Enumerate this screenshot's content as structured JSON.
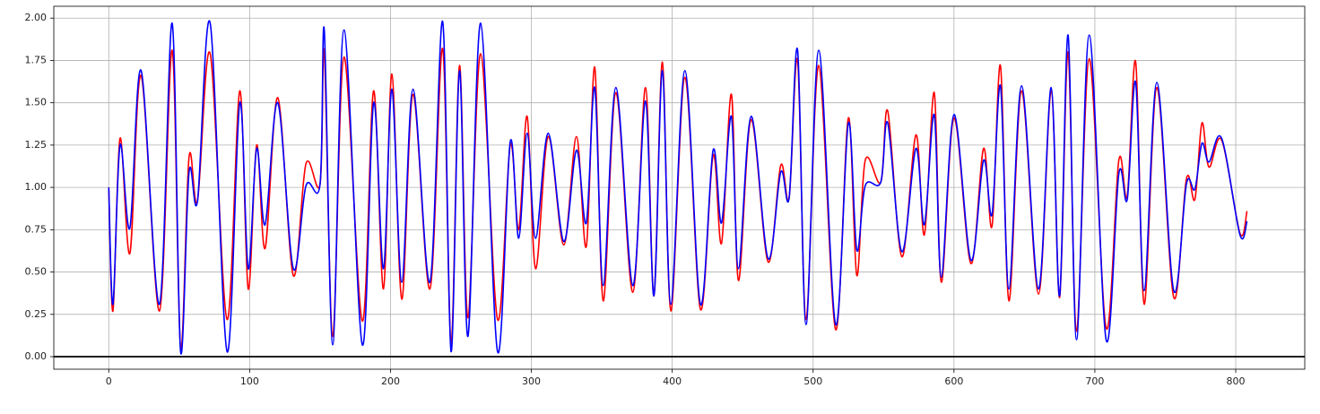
{
  "chart_data": {
    "type": "line",
    "x": [
      0,
      3,
      8,
      15,
      23,
      36,
      45,
      51,
      57,
      63,
      72,
      84,
      93,
      99,
      105,
      111,
      120,
      131,
      140,
      150,
      153,
      159,
      167,
      180,
      188,
      195,
      201,
      208,
      216,
      228,
      237,
      243,
      249,
      255,
      264,
      276,
      285,
      291,
      297,
      303,
      312,
      323,
      332,
      339,
      345,
      351,
      360,
      372,
      381,
      387,
      393,
      399,
      409,
      420,
      429,
      435,
      442,
      447,
      456,
      468,
      477,
      483,
      489,
      495,
      504,
      516,
      525,
      531,
      537,
      548,
      553,
      563,
      573,
      579,
      586,
      591,
      600,
      612,
      621,
      627,
      633,
      639,
      648,
      660,
      669,
      675,
      681,
      687,
      696,
      708,
      717,
      723,
      729,
      735,
      744,
      756,
      765,
      771,
      776,
      781,
      790,
      803,
      808
    ],
    "series": [
      {
        "color": "#ff0000",
        "values": [
          1.0,
          0.27,
          1.29,
          0.61,
          1.66,
          0.27,
          1.81,
          0.05,
          1.18,
          0.92,
          1.79,
          0.22,
          1.57,
          0.4,
          1.25,
          0.64,
          1.53,
          0.48,
          1.14,
          1.02,
          1.8,
          0.12,
          1.77,
          0.21,
          1.57,
          0.4,
          1.67,
          0.34,
          1.55,
          0.4,
          1.82,
          0.08,
          1.72,
          0.23,
          1.79,
          0.22,
          1.25,
          0.75,
          1.42,
          0.52,
          1.3,
          0.66,
          1.3,
          0.65,
          1.71,
          0.33,
          1.56,
          0.38,
          1.59,
          0.36,
          1.74,
          0.27,
          1.65,
          0.28,
          1.19,
          0.67,
          1.55,
          0.45,
          1.4,
          0.56,
          1.13,
          0.94,
          1.75,
          0.22,
          1.72,
          0.16,
          1.41,
          0.48,
          1.16,
          1.03,
          1.45,
          0.59,
          1.31,
          0.72,
          1.56,
          0.44,
          1.41,
          0.55,
          1.23,
          0.77,
          1.72,
          0.33,
          1.57,
          0.37,
          1.57,
          0.35,
          1.8,
          0.15,
          1.76,
          0.17,
          1.16,
          0.95,
          1.74,
          0.31,
          1.59,
          0.35,
          1.05,
          0.93,
          1.38,
          1.12,
          1.28,
          0.73,
          0.86
        ]
      },
      {
        "color": "#0000ff",
        "values": [
          1.0,
          0.31,
          1.25,
          0.76,
          1.69,
          0.31,
          1.97,
          0.03,
          1.09,
          0.92,
          1.97,
          0.03,
          1.5,
          0.52,
          1.23,
          0.78,
          1.5,
          0.52,
          1.01,
          1.02,
          1.93,
          0.07,
          1.93,
          0.07,
          1.5,
          0.52,
          1.58,
          0.44,
          1.58,
          0.44,
          1.98,
          0.03,
          1.69,
          0.12,
          1.97,
          0.03,
          1.27,
          0.7,
          1.32,
          0.7,
          1.32,
          0.68,
          1.22,
          0.79,
          1.59,
          0.42,
          1.59,
          0.42,
          1.51,
          0.36,
          1.69,
          0.31,
          1.69,
          0.31,
          1.22,
          0.79,
          1.42,
          0.52,
          1.42,
          0.58,
          1.09,
          0.94,
          1.81,
          0.19,
          1.81,
          0.19,
          1.38,
          0.63,
          1.01,
          1.03,
          1.38,
          0.62,
          1.23,
          0.78,
          1.43,
          0.47,
          1.43,
          0.57,
          1.16,
          0.84,
          1.6,
          0.4,
          1.6,
          0.4,
          1.59,
          0.36,
          1.9,
          0.1,
          1.9,
          0.1,
          1.08,
          0.93,
          1.62,
          0.39,
          1.62,
          0.39,
          1.02,
          0.99,
          1.26,
          1.15,
          1.29,
          0.72,
          0.8
        ]
      }
    ],
    "xlim": [
      -39,
      849
    ],
    "xticks": [
      0,
      100,
      200,
      300,
      400,
      500,
      600,
      700,
      800
    ],
    "ylim": [
      -0.074,
      2.07
    ],
    "yticks": [
      {
        "value": 0,
        "label": "0.00"
      },
      {
        "value": 0.25,
        "label": "0.25"
      },
      {
        "value": 0.5,
        "label": "0.50"
      },
      {
        "value": 0.75,
        "label": "0.75"
      },
      {
        "value": 1,
        "label": "1.00"
      },
      {
        "value": 1.25,
        "label": "1.25"
      },
      {
        "value": 1.5,
        "label": "1.50"
      },
      {
        "value": 1.75,
        "label": "1.75"
      },
      {
        "value": 2,
        "label": "2.00"
      }
    ],
    "grid": true,
    "hline": 0
  }
}
